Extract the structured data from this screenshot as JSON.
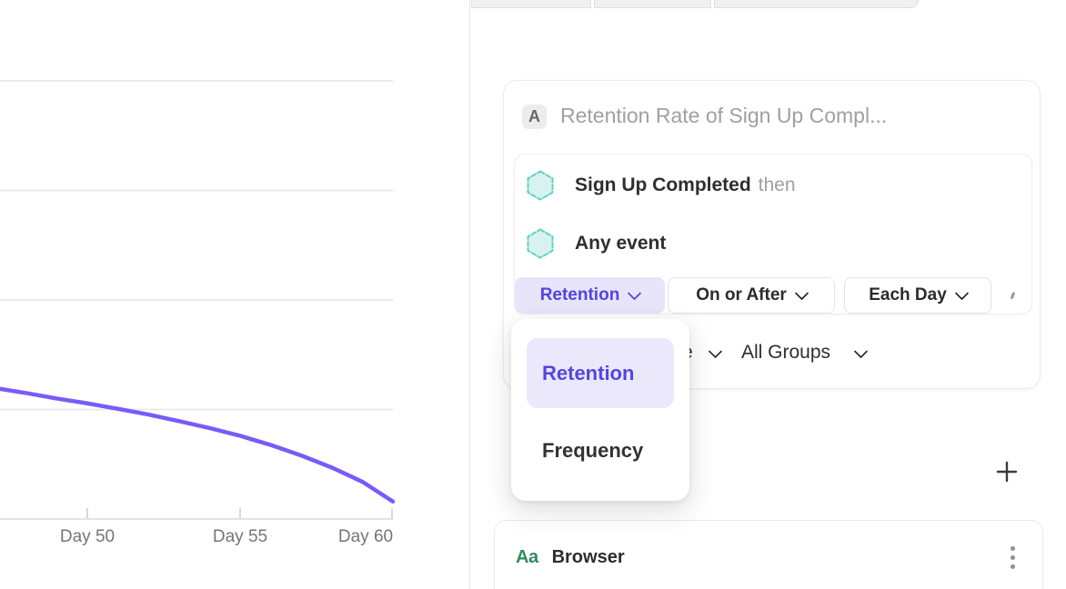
{
  "chart_data": {
    "type": "line",
    "title": "",
    "xlabel": "",
    "ylabel": "",
    "x_unit": "day",
    "y_unit": "percent (estimated from unlabeled gridlines, 5% per gridline)",
    "x": [
      47.1,
      48,
      49,
      50,
      51,
      52,
      53,
      54,
      55,
      56,
      57,
      58,
      59,
      60
    ],
    "series": [
      {
        "name": "Retention Rate of Sign Up Completed",
        "values": [
          5.95,
          5.75,
          5.5,
          5.28,
          5.03,
          4.77,
          4.47,
          4.15,
          3.8,
          3.38,
          2.9,
          2.35,
          1.7,
          0.8
        ]
      }
    ],
    "ylim": [
      0,
      21.2
    ],
    "gridline_values": [
      5,
      10,
      15,
      20
    ],
    "grid": "horizontal",
    "x_tick_days": [
      50,
      55,
      60
    ],
    "x_tick_labels": [
      "Day 50",
      "Day 55",
      "Day 60"
    ],
    "legend": "none",
    "line_color": "#7A5AF8"
  },
  "right_panel": {
    "query_card": {
      "series_badge": "A",
      "title_placeholder": "Retention Rate of Sign Up Compl...",
      "event_rows": [
        {
          "event": "Sign Up Completed",
          "connector": "then"
        },
        {
          "event": "Any event",
          "connector": ""
        }
      ],
      "controls": [
        {
          "label": "Retention",
          "selected": true
        },
        {
          "label": "On or After",
          "selected": false
        },
        {
          "label": "Each Day",
          "selected": false
        }
      ],
      "measurement_row": {
        "visible_fragment": "e",
        "group_filter": "All Groups"
      }
    },
    "dropdown_menu": {
      "items": [
        {
          "label": "Retention",
          "selected": true
        },
        {
          "label": "Frequency",
          "selected": false
        }
      ]
    },
    "add_button": "+",
    "breakdown_card": {
      "type_icon": "Aa",
      "property": "Browser"
    }
  },
  "colors": {
    "accent_purple_text": "#5244E2",
    "accent_purple_bg": "#E8E4FA",
    "dropdown_selected_bg": "#ECE8FB",
    "line_purple": "#7A5AF8",
    "hexagon_stroke": "#5BD3C3",
    "hexagon_fill": "#D8F3EF",
    "string_type_green": "#2E8C5E",
    "gridline": "#EBEBEB",
    "muted_text": "#A0A0A0"
  }
}
